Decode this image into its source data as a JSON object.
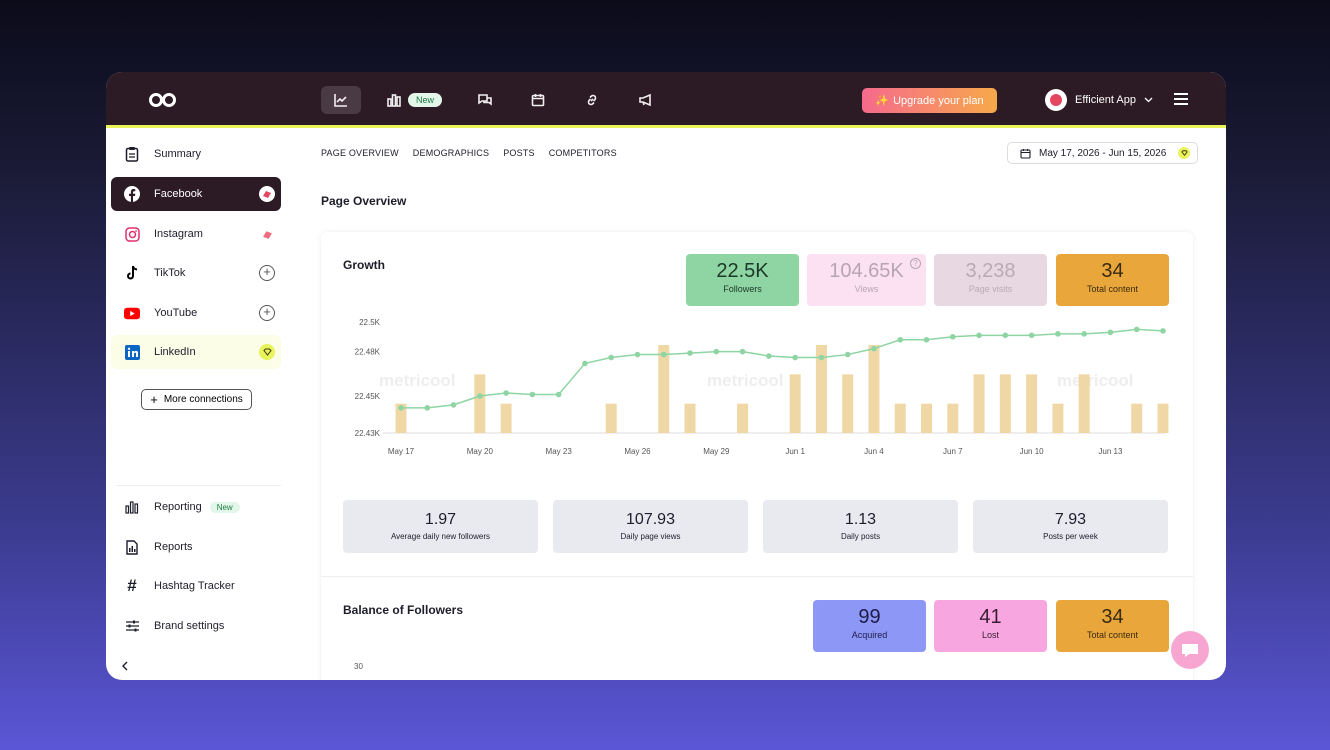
{
  "topbar": {
    "nav": [
      {
        "name": "analytics-icon",
        "active": true
      },
      {
        "name": "reporting-icon",
        "badge": "New"
      },
      {
        "name": "inbox-icon"
      },
      {
        "name": "planner-icon"
      },
      {
        "name": "link-icon"
      },
      {
        "name": "ads-icon"
      }
    ],
    "new_badge": "New",
    "upgrade_label": "Upgrade your plan",
    "account_name": "Efficient App"
  },
  "sidebar": {
    "networks": [
      {
        "label": "Summary",
        "icon": "clipboard-icon"
      },
      {
        "label": "Facebook",
        "icon": "facebook-icon",
        "active": true
      },
      {
        "label": "Instagram",
        "icon": "instagram-icon"
      },
      {
        "label": "TikTok",
        "icon": "tiktok-icon"
      },
      {
        "label": "YouTube",
        "icon": "youtube-icon"
      },
      {
        "label": "LinkedIn",
        "icon": "linkedin-icon"
      }
    ],
    "more_connections": "More connections",
    "bottom": [
      {
        "label": "Reporting",
        "badge": "New",
        "icon": "bar-chart-icon"
      },
      {
        "label": "Reports",
        "icon": "document-icon"
      },
      {
        "label": "Hashtag Tracker",
        "icon": "hashtag-icon"
      },
      {
        "label": "Brand settings",
        "icon": "sliders-icon"
      }
    ]
  },
  "subnav": [
    "PAGE OVERVIEW",
    "DEMOGRAPHICS",
    "POSTS",
    "COMPETITORS"
  ],
  "date_range": "May 17, 2026 - Jun 15, 2026",
  "page_title": "Page Overview",
  "growth": {
    "title": "Growth",
    "kpis": [
      {
        "value": "22.5K",
        "label": "Followers",
        "bg": "#8fd4a3",
        "fg": "#1d3a28"
      },
      {
        "value": "104.65K",
        "label": "Views",
        "bg": "#fbe1f1",
        "fg": "#b7a5b3"
      },
      {
        "value": "3,238",
        "label": "Page visits",
        "bg": "#e8d8e2",
        "fg": "#b9aab4"
      },
      {
        "value": "34",
        "label": "Total content",
        "bg": "#e9a73b",
        "fg": "#3a2a10"
      }
    ],
    "stats": [
      {
        "value": "1.97",
        "label": "Average daily new followers"
      },
      {
        "value": "107.93",
        "label": "Daily page views"
      },
      {
        "value": "1.13",
        "label": "Daily posts"
      },
      {
        "value": "7.93",
        "label": "Posts per week"
      }
    ]
  },
  "chart_data": {
    "type": "line",
    "y_ticks": [
      "22.5K",
      "22.48K",
      "22.45K",
      "22.43K"
    ],
    "x_labels": [
      "May 17",
      "May 20",
      "May 23",
      "May 26",
      "May 29",
      "Jun 1",
      "Jun 4",
      "Jun 7",
      "Jun 10",
      "Jun 13"
    ],
    "watermark": "metricool",
    "followers_line": [
      22442,
      22442,
      22444,
      22450,
      22452,
      22451,
      22451,
      22472,
      22476,
      22478,
      22478,
      22479,
      22480,
      22480,
      22477,
      22476,
      22476,
      22478,
      22482,
      22488,
      22488,
      22490,
      22491,
      22491,
      22491,
      22492,
      22492,
      22493,
      22495,
      22494
    ],
    "content_bars": [
      1,
      0,
      0,
      2,
      1,
      0,
      0,
      0,
      1,
      0,
      3,
      1,
      0,
      1,
      0,
      2,
      3,
      2,
      3,
      1,
      1,
      1,
      2,
      2,
      2,
      1,
      2,
      0,
      1,
      1
    ],
    "line_color": "#8fd4a3",
    "bar_color": "#f0d8a6"
  },
  "balance": {
    "title": "Balance of Followers",
    "kpis": [
      {
        "value": "99",
        "label": "Acquired",
        "bg": "#8d97f5",
        "fg": "#1d1d4a"
      },
      {
        "value": "41",
        "label": "Lost",
        "bg": "#f7a6e0",
        "fg": "#3a1d33"
      },
      {
        "value": "34",
        "label": "Total content",
        "bg": "#e9a73b",
        "fg": "#3a2a10"
      }
    ],
    "y_tick_first": "30"
  }
}
